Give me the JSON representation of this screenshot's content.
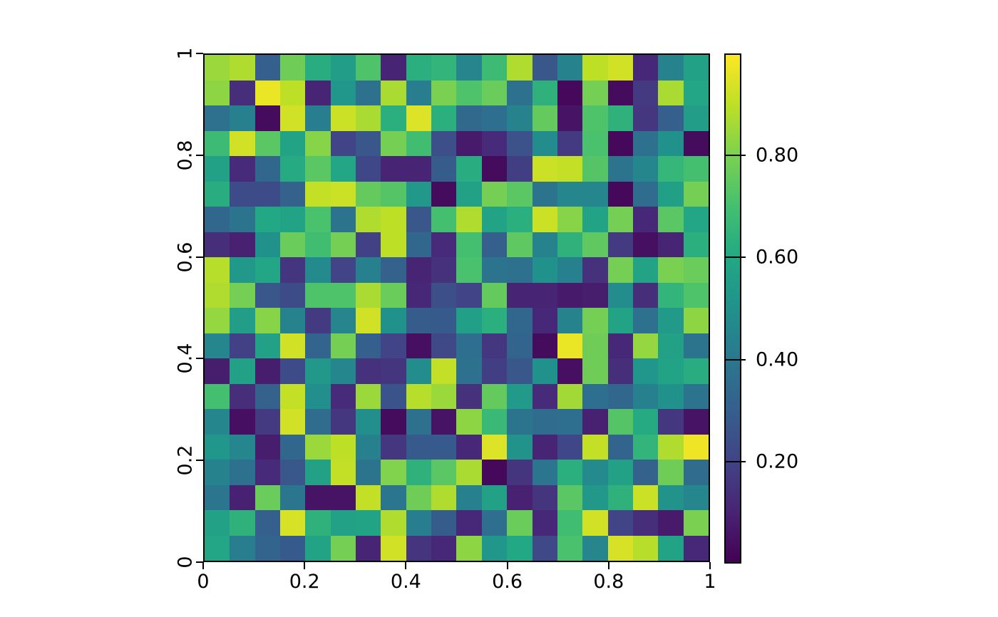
{
  "figure": {
    "background": "#ffffff",
    "text_color": "#000000",
    "axis_color": "#000000"
  },
  "chart_data": {
    "type": "heatmap",
    "title": "",
    "xlabel": "",
    "ylabel": "",
    "grid_rows": 20,
    "grid_cols": 20,
    "x_range": [
      0,
      1
    ],
    "y_range": [
      0,
      1
    ],
    "rows_order": "top-to-bottom",
    "xticks": {
      "values": [
        0,
        0.2,
        0.4,
        0.6,
        0.8,
        1
      ],
      "labels": [
        "0",
        "0.2",
        "0.4",
        "0.6",
        "0.8",
        "1"
      ]
    },
    "yticks": {
      "values": [
        0,
        0.2,
        0.4,
        0.6,
        0.8,
        1
      ],
      "labels": [
        "0",
        "0.2",
        "0.4",
        "0.6",
        "0.8",
        "1"
      ],
      "rotation_deg": 90
    },
    "colorbar": {
      "vmin": 0.0,
      "vmax": 1.0,
      "tick_values": [
        0.2,
        0.4,
        0.6,
        0.8
      ],
      "tick_labels": [
        "0.20",
        "0.40",
        "0.60",
        "0.80"
      ]
    },
    "colormap": {
      "name": "viridis",
      "anchors": [
        [
          0.0,
          "#440154"
        ],
        [
          0.1,
          "#482475"
        ],
        [
          0.2,
          "#414487"
        ],
        [
          0.3,
          "#355f8d"
        ],
        [
          0.4,
          "#2a788e"
        ],
        [
          0.5,
          "#21918c"
        ],
        [
          0.6,
          "#22a884"
        ],
        [
          0.7,
          "#44bf70"
        ],
        [
          0.8,
          "#7ad151"
        ],
        [
          0.9,
          "#bddf26"
        ],
        [
          1.0,
          "#fde725"
        ]
      ]
    },
    "values": [
      [
        0.85,
        0.88,
        0.3,
        0.78,
        0.62,
        0.55,
        0.72,
        0.1,
        0.63,
        0.65,
        0.45,
        0.68,
        0.88,
        0.27,
        0.44,
        0.9,
        0.93,
        0.11,
        0.44,
        0.57
      ],
      [
        0.83,
        0.13,
        0.97,
        0.9,
        0.1,
        0.52,
        0.37,
        0.87,
        0.42,
        0.8,
        0.72,
        0.77,
        0.37,
        0.64,
        0.02,
        0.79,
        0.03,
        0.17,
        0.87,
        0.59
      ],
      [
        0.37,
        0.43,
        0.03,
        0.93,
        0.42,
        0.92,
        0.87,
        0.63,
        0.95,
        0.63,
        0.34,
        0.36,
        0.44,
        0.76,
        0.05,
        0.72,
        0.64,
        0.16,
        0.3,
        0.55
      ],
      [
        0.68,
        0.93,
        0.74,
        0.58,
        0.82,
        0.2,
        0.27,
        0.79,
        0.69,
        0.24,
        0.07,
        0.12,
        0.25,
        0.48,
        0.17,
        0.71,
        0.02,
        0.37,
        0.5,
        0.03
      ],
      [
        0.57,
        0.12,
        0.33,
        0.61,
        0.74,
        0.59,
        0.21,
        0.1,
        0.1,
        0.29,
        0.62,
        0.03,
        0.18,
        0.92,
        0.91,
        0.73,
        0.38,
        0.46,
        0.66,
        0.7
      ],
      [
        0.62,
        0.23,
        0.23,
        0.31,
        0.91,
        0.92,
        0.76,
        0.73,
        0.53,
        0.03,
        0.57,
        0.79,
        0.74,
        0.38,
        0.46,
        0.46,
        0.02,
        0.35,
        0.56,
        0.79
      ],
      [
        0.33,
        0.38,
        0.6,
        0.58,
        0.71,
        0.38,
        0.88,
        0.9,
        0.27,
        0.7,
        0.88,
        0.58,
        0.63,
        0.92,
        0.82,
        0.58,
        0.79,
        0.11,
        0.74,
        0.59
      ],
      [
        0.13,
        0.09,
        0.5,
        0.77,
        0.69,
        0.79,
        0.19,
        0.9,
        0.33,
        0.12,
        0.7,
        0.3,
        0.75,
        0.44,
        0.64,
        0.75,
        0.17,
        0.04,
        0.1,
        0.63
      ],
      [
        0.89,
        0.53,
        0.59,
        0.15,
        0.47,
        0.2,
        0.43,
        0.31,
        0.1,
        0.14,
        0.71,
        0.38,
        0.37,
        0.5,
        0.43,
        0.14,
        0.79,
        0.58,
        0.8,
        0.77
      ],
      [
        0.88,
        0.79,
        0.27,
        0.23,
        0.72,
        0.72,
        0.87,
        0.77,
        0.11,
        0.24,
        0.2,
        0.76,
        0.1,
        0.1,
        0.07,
        0.08,
        0.48,
        0.13,
        0.65,
        0.72
      ],
      [
        0.84,
        0.55,
        0.82,
        0.44,
        0.17,
        0.45,
        0.93,
        0.5,
        0.29,
        0.28,
        0.56,
        0.63,
        0.33,
        0.11,
        0.44,
        0.79,
        0.58,
        0.37,
        0.54,
        0.83
      ],
      [
        0.46,
        0.19,
        0.57,
        0.93,
        0.32,
        0.79,
        0.3,
        0.2,
        0.04,
        0.22,
        0.36,
        0.16,
        0.32,
        0.03,
        0.97,
        0.78,
        0.11,
        0.84,
        0.57,
        0.38
      ],
      [
        0.08,
        0.57,
        0.08,
        0.23,
        0.53,
        0.46,
        0.14,
        0.15,
        0.48,
        0.91,
        0.37,
        0.18,
        0.27,
        0.5,
        0.04,
        0.78,
        0.13,
        0.52,
        0.58,
        0.62
      ],
      [
        0.7,
        0.13,
        0.31,
        0.91,
        0.49,
        0.12,
        0.85,
        0.26,
        0.89,
        0.85,
        0.14,
        0.76,
        0.54,
        0.12,
        0.86,
        0.36,
        0.33,
        0.43,
        0.5,
        0.38
      ],
      [
        0.46,
        0.04,
        0.17,
        0.93,
        0.35,
        0.16,
        0.49,
        0.03,
        0.37,
        0.05,
        0.83,
        0.67,
        0.38,
        0.35,
        0.36,
        0.09,
        0.73,
        0.61,
        0.16,
        0.05
      ],
      [
        0.52,
        0.46,
        0.08,
        0.33,
        0.85,
        0.9,
        0.43,
        0.16,
        0.28,
        0.28,
        0.11,
        0.95,
        0.51,
        0.1,
        0.21,
        0.91,
        0.32,
        0.65,
        0.88,
        0.98
      ],
      [
        0.44,
        0.37,
        0.12,
        0.27,
        0.57,
        0.91,
        0.38,
        0.81,
        0.64,
        0.74,
        0.87,
        0.02,
        0.15,
        0.39,
        0.63,
        0.47,
        0.57,
        0.31,
        0.78,
        0.35
      ],
      [
        0.39,
        0.09,
        0.77,
        0.39,
        0.05,
        0.05,
        0.91,
        0.39,
        0.78,
        0.88,
        0.43,
        0.57,
        0.09,
        0.15,
        0.74,
        0.53,
        0.64,
        0.92,
        0.51,
        0.46
      ],
      [
        0.57,
        0.64,
        0.3,
        0.94,
        0.64,
        0.57,
        0.58,
        0.88,
        0.42,
        0.29,
        0.11,
        0.36,
        0.77,
        0.11,
        0.69,
        0.93,
        0.2,
        0.13,
        0.07,
        0.8
      ],
      [
        0.59,
        0.42,
        0.32,
        0.28,
        0.58,
        0.79,
        0.1,
        0.93,
        0.15,
        0.11,
        0.83,
        0.52,
        0.6,
        0.22,
        0.71,
        0.45,
        0.94,
        0.89,
        0.58,
        0.11
      ]
    ]
  }
}
